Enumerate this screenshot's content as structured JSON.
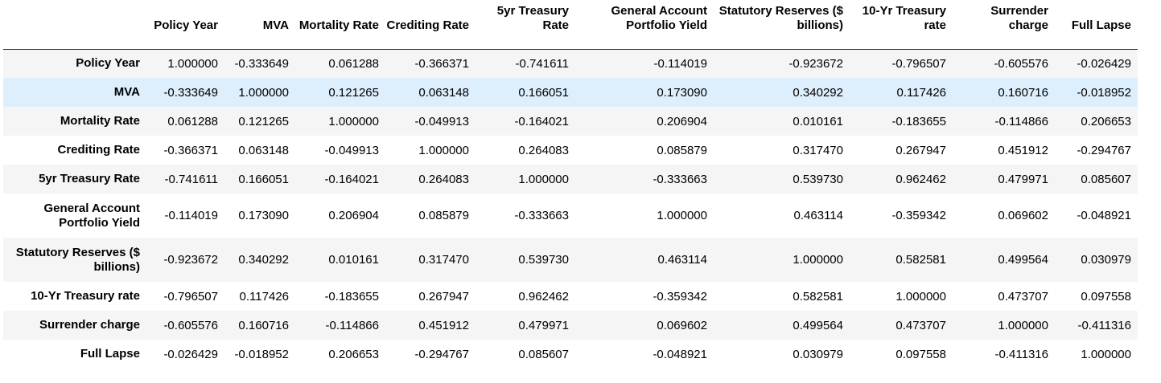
{
  "columns": [
    "Policy Year",
    "MVA",
    "Mortality Rate",
    "Crediting Rate",
    "5yr Treasury Rate",
    "General Account Portfolio Yield",
    "Statutory Reserves ($ billions)",
    "10-Yr Treasury rate",
    "Surrender charge",
    "Full Lapse"
  ],
  "rows": [
    {
      "label": "Policy Year",
      "values": [
        "1.000000",
        "-0.333649",
        "0.061288",
        "-0.366371",
        "-0.741611",
        "-0.114019",
        "-0.923672",
        "-0.796507",
        "-0.605576",
        "-0.026429"
      ]
    },
    {
      "label": "MVA",
      "values": [
        "-0.333649",
        "1.000000",
        "0.121265",
        "0.063148",
        "0.166051",
        "0.173090",
        "0.340292",
        "0.117426",
        "0.160716",
        "-0.018952"
      ]
    },
    {
      "label": "Mortality Rate",
      "values": [
        "0.061288",
        "0.121265",
        "1.000000",
        "-0.049913",
        "-0.164021",
        "0.206904",
        "0.010161",
        "-0.183655",
        "-0.114866",
        "0.206653"
      ]
    },
    {
      "label": "Crediting Rate",
      "values": [
        "-0.366371",
        "0.063148",
        "-0.049913",
        "1.000000",
        "0.264083",
        "0.085879",
        "0.317470",
        "0.267947",
        "0.451912",
        "-0.294767"
      ]
    },
    {
      "label": "5yr Treasury Rate",
      "values": [
        "-0.741611",
        "0.166051",
        "-0.164021",
        "0.264083",
        "1.000000",
        "-0.333663",
        "0.539730",
        "0.962462",
        "0.479971",
        "0.085607"
      ]
    },
    {
      "label": "General Account Portfolio Yield",
      "values": [
        "-0.114019",
        "0.173090",
        "0.206904",
        "0.085879",
        "-0.333663",
        "1.000000",
        "0.463114",
        "-0.359342",
        "0.069602",
        "-0.048921"
      ]
    },
    {
      "label": "Statutory Reserves ($ billions)",
      "values": [
        "-0.923672",
        "0.340292",
        "0.010161",
        "0.317470",
        "0.539730",
        "0.463114",
        "1.000000",
        "0.582581",
        "0.499564",
        "0.030979"
      ]
    },
    {
      "label": "10-Yr Treasury rate",
      "values": [
        "-0.796507",
        "0.117426",
        "-0.183655",
        "0.267947",
        "0.962462",
        "-0.359342",
        "0.582581",
        "1.000000",
        "0.473707",
        "0.097558"
      ]
    },
    {
      "label": "Surrender charge",
      "values": [
        "-0.605576",
        "0.160716",
        "-0.114866",
        "0.451912",
        "0.479971",
        "0.069602",
        "0.499564",
        "0.473707",
        "1.000000",
        "-0.411316"
      ]
    },
    {
      "label": "Full Lapse",
      "values": [
        "-0.026429",
        "-0.018952",
        "0.206653",
        "-0.294767",
        "0.085607",
        "-0.048921",
        "0.030979",
        "0.097558",
        "-0.411316",
        "1.000000"
      ]
    }
  ]
}
